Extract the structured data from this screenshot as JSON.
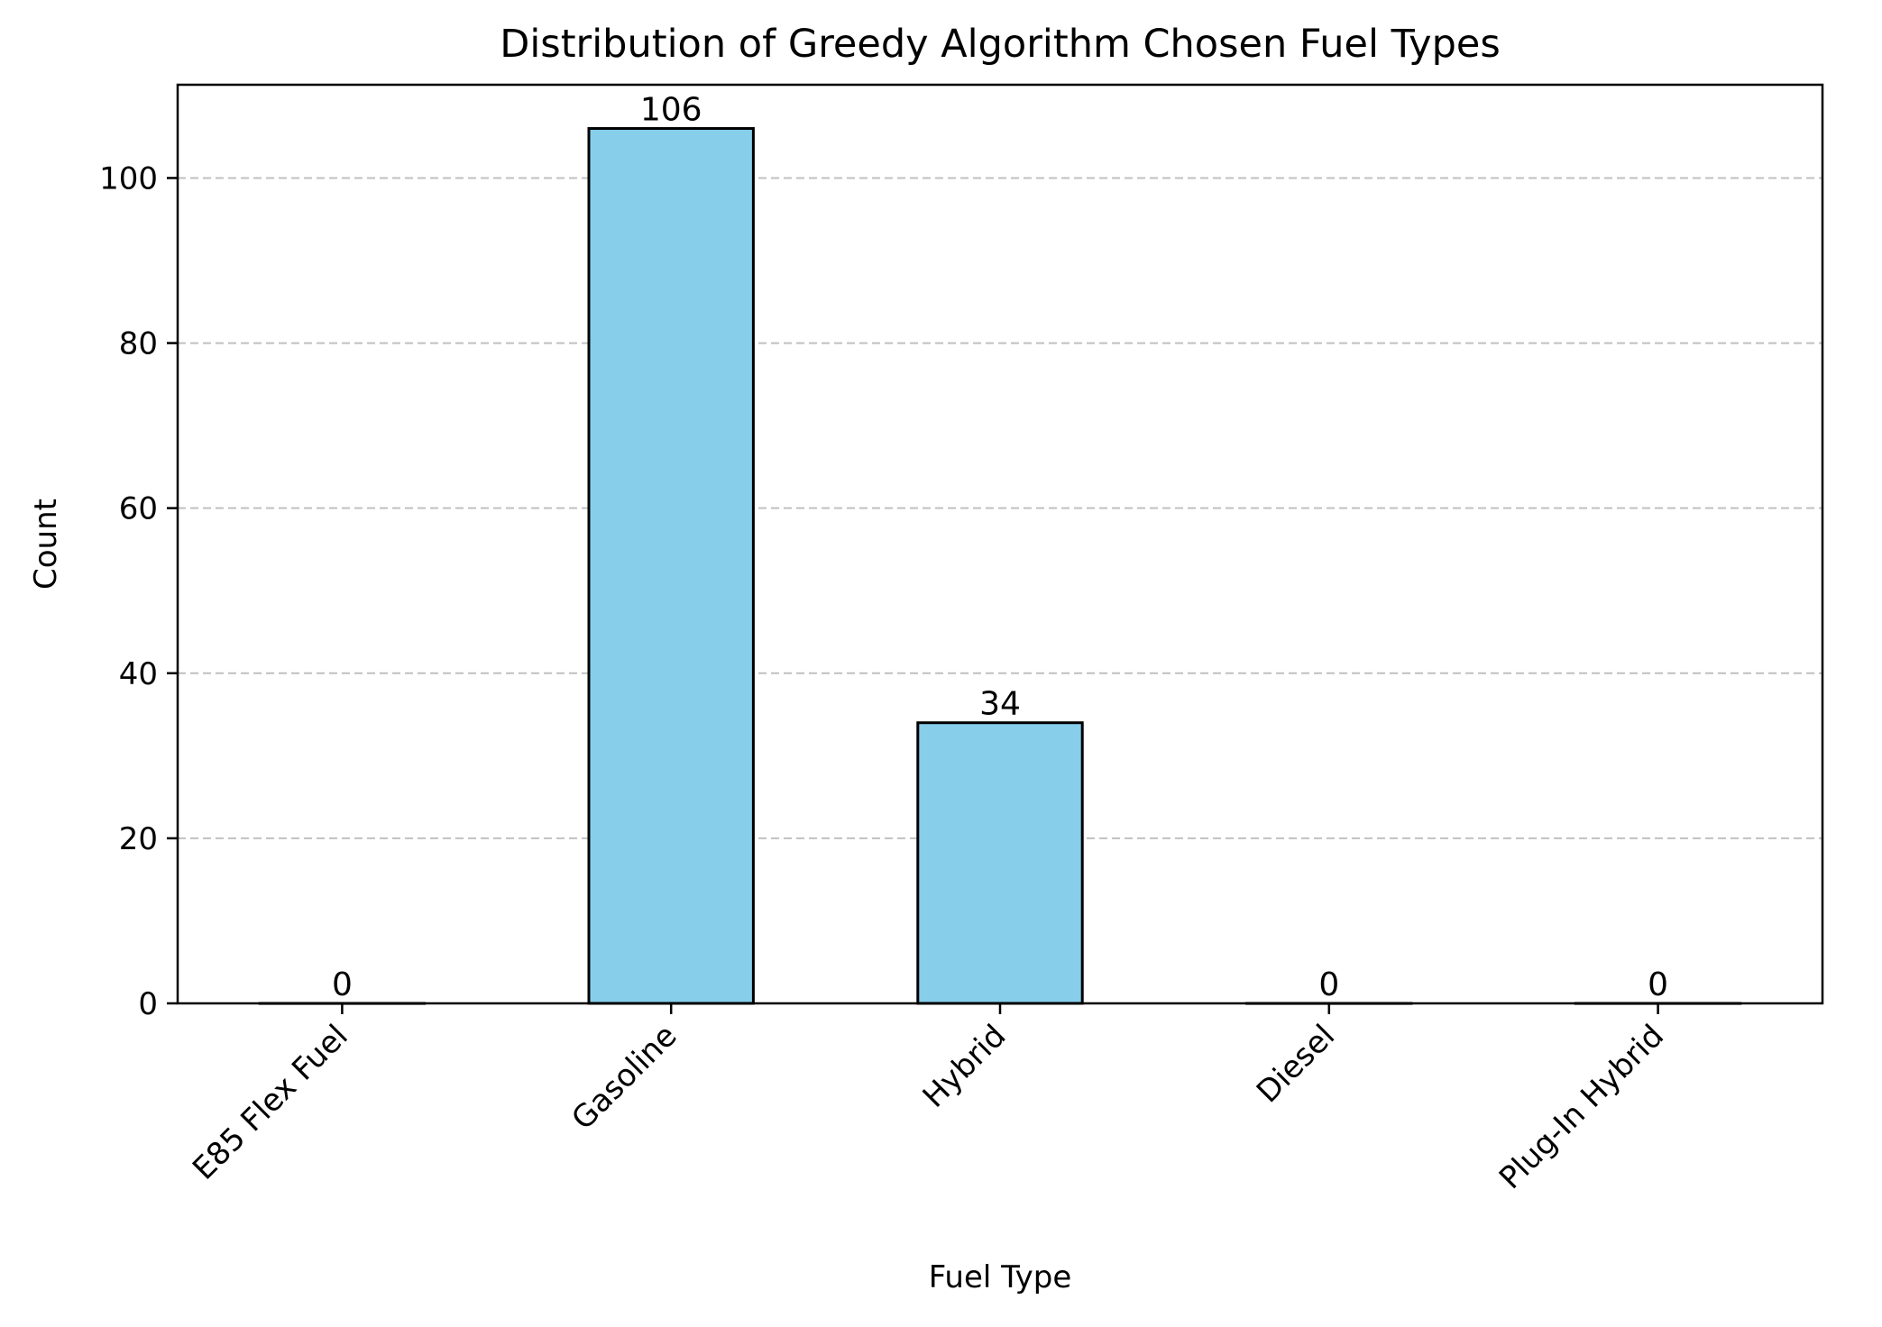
{
  "chart_data": {
    "type": "bar",
    "title": "Distribution of Greedy Algorithm Chosen Fuel Types",
    "xlabel": "Fuel Type",
    "ylabel": "Count",
    "categories": [
      "E85 Flex Fuel",
      "Gasoline",
      "Hybrid",
      "Diesel",
      "Plug-In Hybrid"
    ],
    "values": [
      0,
      106,
      34,
      0,
      0
    ],
    "data_labels": [
      "0",
      "106",
      "34",
      "0",
      "0"
    ],
    "ylim": [
      0,
      111.3
    ],
    "yticks": [
      0,
      20,
      40,
      60,
      80,
      100
    ],
    "ytick_labels": [
      "0",
      "20",
      "40",
      "60",
      "80",
      "100"
    ],
    "grid": {
      "axis": "y",
      "style": "dashed",
      "color": "#c0c0c0"
    },
    "bar_color": "#87ceeb",
    "bar_edge_color": "#000000",
    "xtick_rotation_deg": 45
  }
}
